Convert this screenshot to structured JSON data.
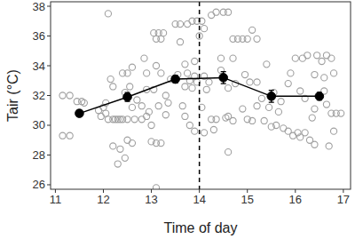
{
  "chart_data": {
    "type": "scatter",
    "x_label": "Time of day",
    "y_label": "Tair (°C)",
    "xlim": [
      10.9,
      17.15
    ],
    "ylim": [
      25.7,
      38.3
    ],
    "xticks": [
      11,
      12,
      13,
      14,
      15,
      16,
      17
    ],
    "yticks": [
      26,
      28,
      30,
      32,
      34,
      36,
      38
    ],
    "grid": false,
    "reference_lines": [
      {
        "x": 14,
        "line_style": "dashed",
        "color": "#000000"
      }
    ],
    "series": [
      {
        "type": "scatter",
        "color": "#a0a0a0",
        "marker": "open-circle",
        "x": [
          11.15,
          11.3,
          11.15,
          11.3,
          11.45,
          11.55,
          11.6,
          11.9,
          12.0,
          12.05,
          12.1,
          12.2,
          12.25,
          12.1,
          12.15,
          12.2,
          12.05,
          11.95,
          12.2,
          12.35,
          12.3,
          12.35,
          12.4,
          12.4,
          12.5,
          12.45,
          12.55,
          12.6,
          12.5,
          12.65,
          12.45,
          12.6,
          12.3,
          12.5,
          12.7,
          12.8,
          12.6,
          12.9,
          12.8,
          12.9,
          12.85,
          12.9,
          12.95,
          13.0,
          13.05,
          13.15,
          13.25,
          13.1,
          13.2,
          13.1,
          13.2,
          13.05,
          13.15,
          13.0,
          13.1,
          13.2,
          13.1,
          13.3,
          13.35,
          13.3,
          13.4,
          13.55,
          13.5,
          13.6,
          13.6,
          13.7,
          13.75,
          13.8,
          13.7,
          13.65,
          13.7,
          13.8,
          13.9,
          13.95,
          13.85,
          13.85,
          13.95,
          13.75,
          13.9,
          13.9,
          14.05,
          14.25,
          14.35,
          14.1,
          14.0,
          14.1,
          14.2,
          14.15,
          14.05,
          14.25,
          14.35,
          14.3,
          14.45,
          14.45,
          14.1,
          14.5,
          14.6,
          14.7,
          14.8,
          14.7,
          14.6,
          14.75,
          14.6,
          14.7,
          14.55,
          14.6,
          14.9,
          15.0,
          14.95,
          14.9,
          15.0,
          15.05,
          15.1,
          15.2,
          15.2,
          15.3,
          15.2,
          15.1,
          15.35,
          15.4,
          15.45,
          15.5,
          15.55,
          15.65,
          15.6,
          15.75,
          15.85,
          15.95,
          15.7,
          15.9,
          15.85,
          16.0,
          16.15,
          16.25,
          16.45,
          16.1,
          16.2,
          16.05,
          16.1,
          16.2,
          16.3,
          16.4,
          16.35,
          16.4,
          16.4,
          16.55,
          16.65,
          16.75,
          16.6,
          16.6,
          16.65,
          16.75,
          16.85,
          16.95,
          16.7,
          16.8,
          16.8
        ],
        "values": [
          32.0,
          32.0,
          29.3,
          29.3,
          31.6,
          31.6,
          31.5,
          31.0,
          31.2,
          30.8,
          30.4,
          30.4,
          30.4,
          37.5,
          33.1,
          32.6,
          31.5,
          30.6,
          28.6,
          28.4,
          30.4,
          30.4,
          30.4,
          33.5,
          33.5,
          32.2,
          32.6,
          31.2,
          30.4,
          30.4,
          27.8,
          28.8,
          27.4,
          29.0,
          31.7,
          30.4,
          33.9,
          30.6,
          31.3,
          32.4,
          34.5,
          33.5,
          30.9,
          28.9,
          36.2,
          36.2,
          36.2,
          35.8,
          35.8,
          34.0,
          33.5,
          32.4,
          31.3,
          30.0,
          28.8,
          28.8,
          25.8,
          32.0,
          31.5,
          30.7,
          33.1,
          33.4,
          36.8,
          36.8,
          35.6,
          34.1,
          33.5,
          33.0,
          32.6,
          31.3,
          30.6,
          30.0,
          29.6,
          32.9,
          32.5,
          37.0,
          37.0,
          36.8,
          34.3,
          33.3,
          37.0,
          37.4,
          37.6,
          36.5,
          36.0,
          33.3,
          32.9,
          32.4,
          31.2,
          30.4,
          30.4,
          29.7,
          34.5,
          33.7,
          29.5,
          37.6,
          37.6,
          35.8,
          35.8,
          34.5,
          32.5,
          32.8,
          30.6,
          30.3,
          30.5,
          28.2,
          35.8,
          35.8,
          33.4,
          31.1,
          30.4,
          32.9,
          36.4,
          35.8,
          32.9,
          31.8,
          31.3,
          30.3,
          30.3,
          34.1,
          31.2,
          29.9,
          32.2,
          30.9,
          30.0,
          29.8,
          29.6,
          29.3,
          31.6,
          33.5,
          32.8,
          34.5,
          34.5,
          34.7,
          34.7,
          32.3,
          31.8,
          29.5,
          29.2,
          29.5,
          29.0,
          28.7,
          30.5,
          33.4,
          31.1,
          34.3,
          34.7,
          34.5,
          33.2,
          32.3,
          31.4,
          30.8,
          30.8,
          30.8,
          28.6,
          29.6,
          33.5
        ]
      },
      {
        "type": "line",
        "color": "#000000",
        "marker": "filled-circle",
        "x": [
          11.5,
          12.5,
          13.5,
          14.5,
          15.5,
          16.5
        ],
        "values": [
          30.8,
          31.9,
          33.1,
          33.2,
          31.95,
          31.95
        ],
        "errors": [
          0.2,
          0.3,
          0.25,
          0.4,
          0.4,
          0.25
        ]
      }
    ]
  }
}
